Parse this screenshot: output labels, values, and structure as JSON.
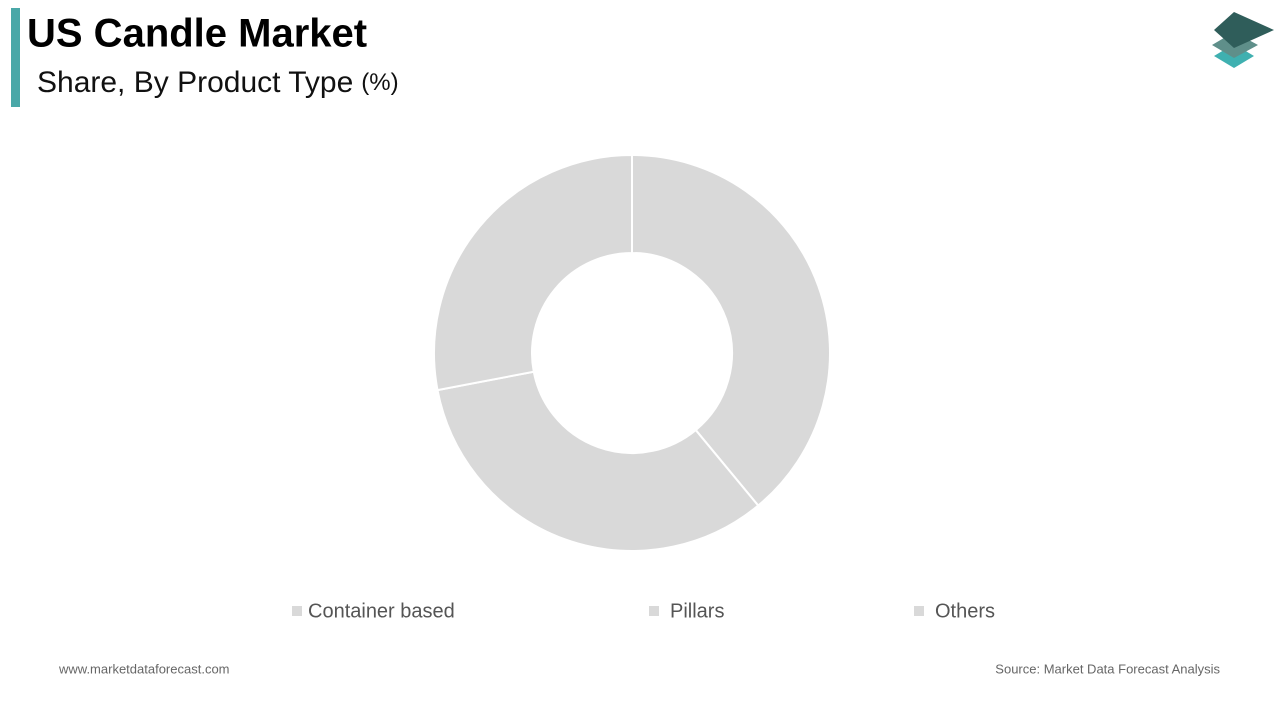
{
  "chart_data": {
    "type": "donut",
    "title": "US Candle Market",
    "subtitle": "Share, By Product Type",
    "unit": "(%)",
    "categories": [
      "Container based",
      "Pillars",
      "Others"
    ],
    "values": [
      39,
      33,
      28
    ],
    "colors": [
      "#d9d9d9",
      "#d9d9d9",
      "#d9d9d9"
    ],
    "legend": "bottom"
  },
  "footer": {
    "website": "www.marketdataforecast.com",
    "source": "Source: Market Data Forecast Analysis"
  }
}
